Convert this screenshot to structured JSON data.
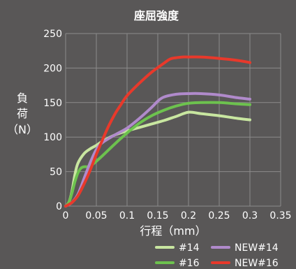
{
  "chart_data": {
    "type": "line",
    "title": "座屈強度",
    "xlabel": "行程（mm）",
    "ylabel_chars": [
      "負",
      "荷",
      "（N）"
    ],
    "xlim": [
      0,
      0.35
    ],
    "ylim": [
      0,
      250
    ],
    "x_ticks": [
      0,
      0.05,
      0.1,
      0.15,
      0.2,
      0.25,
      0.3,
      0.35
    ],
    "x_tick_labels": [
      "0",
      "0.05",
      "0.1",
      "0.15",
      "0.2",
      "0.25",
      "0.3",
      "0.35"
    ],
    "y_ticks": [
      0,
      50,
      100,
      150,
      200,
      250
    ],
    "y_tick_labels": [
      "0",
      "50",
      "100",
      "150",
      "200",
      "250"
    ],
    "grid": true,
    "legend_position": "bottom-right",
    "series": [
      {
        "name": "#14",
        "color": "#c8e6a0",
        "x": [
          0,
          0.005,
          0.01,
          0.015,
          0.02,
          0.03,
          0.04,
          0.05,
          0.06,
          0.08,
          0.1,
          0.12,
          0.14,
          0.16,
          0.18,
          0.2,
          0.22,
          0.25,
          0.28,
          0.3
        ],
        "y": [
          0,
          5,
          20,
          45,
          62,
          76,
          83,
          88,
          94,
          103,
          109,
          114,
          119,
          124,
          130,
          136,
          134,
          131,
          127,
          125
        ]
      },
      {
        "name": "#16",
        "color": "#6dc24e",
        "x": [
          0,
          0.005,
          0.01,
          0.015,
          0.02,
          0.025,
          0.03,
          0.035,
          0.04,
          0.05,
          0.06,
          0.08,
          0.1,
          0.12,
          0.14,
          0.16,
          0.18,
          0.2,
          0.22,
          0.25,
          0.28,
          0.3
        ],
        "y": [
          0,
          5,
          18,
          35,
          48,
          55,
          57,
          57,
          58,
          65,
          73,
          90,
          106,
          120,
          131,
          139,
          145,
          149,
          150,
          150,
          148,
          147
        ]
      },
      {
        "name": "NEW#14",
        "color": "#b08acb",
        "x": [
          0,
          0.01,
          0.02,
          0.03,
          0.04,
          0.05,
          0.06,
          0.08,
          0.1,
          0.12,
          0.14,
          0.15,
          0.16,
          0.18,
          0.2,
          0.22,
          0.25,
          0.28,
          0.3
        ],
        "y": [
          0,
          5,
          17,
          40,
          63,
          82,
          92,
          103,
          113,
          127,
          143,
          152,
          158,
          162,
          163,
          163,
          161,
          157,
          155
        ]
      },
      {
        "name": "NEW#16",
        "color": "#e8392b",
        "x": [
          0,
          0.01,
          0.02,
          0.03,
          0.04,
          0.05,
          0.06,
          0.07,
          0.08,
          0.09,
          0.1,
          0.12,
          0.14,
          0.16,
          0.17,
          0.18,
          0.19,
          0.2,
          0.22,
          0.25,
          0.28,
          0.3
        ],
        "y": [
          0,
          5,
          15,
          32,
          52,
          75,
          96,
          116,
          133,
          147,
          160,
          178,
          194,
          207,
          213,
          215,
          216,
          216,
          216,
          214,
          211,
          208
        ]
      }
    ]
  }
}
